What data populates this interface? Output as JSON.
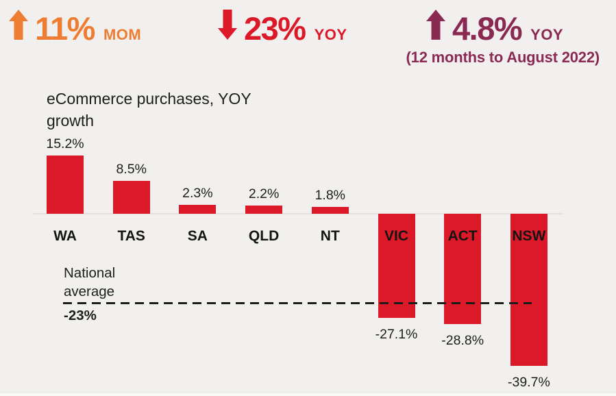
{
  "colors": {
    "background": "#f1f0ef",
    "orange": "#ee7d33",
    "red": "#dc1928",
    "maroon": "#8a2a52",
    "text": "#1d1d1b",
    "baseline_gray": "#e1e1df"
  },
  "stats": [
    {
      "direction": "up",
      "value": "11%",
      "suffix": "MOM",
      "color": "#ee7d33"
    },
    {
      "direction": "down",
      "value": "23%",
      "suffix": "YOY",
      "color": "#dc1928"
    },
    {
      "direction": "up",
      "value": "4.8%",
      "suffix": "YOY",
      "color": "#8a2a52",
      "note": "(12 months to August 2022)"
    }
  ],
  "chart_data": {
    "type": "bar",
    "title": "eCommerce purchases, YOY growth",
    "categories": [
      "WA",
      "TAS",
      "SA",
      "QLD",
      "NT",
      "VIC",
      "ACT",
      "NSW"
    ],
    "values": [
      15.2,
      8.5,
      2.3,
      2.2,
      1.8,
      -27.1,
      -28.8,
      -39.7
    ],
    "value_labels": [
      "15.2%",
      "8.5%",
      "2.3%",
      "2.2%",
      "1.8%",
      "-27.1%",
      "-28.8%",
      "-39.7%"
    ],
    "bar_color": "#dc1928",
    "xlabel": "",
    "ylabel": "",
    "grid": "off",
    "axis_style": "no y-axis; light gray zero baseline; category labels sit on negative bars",
    "reference_line": {
      "value": -23,
      "label": "National\naverage",
      "value_label": "-23%",
      "style": "black dashed"
    }
  }
}
